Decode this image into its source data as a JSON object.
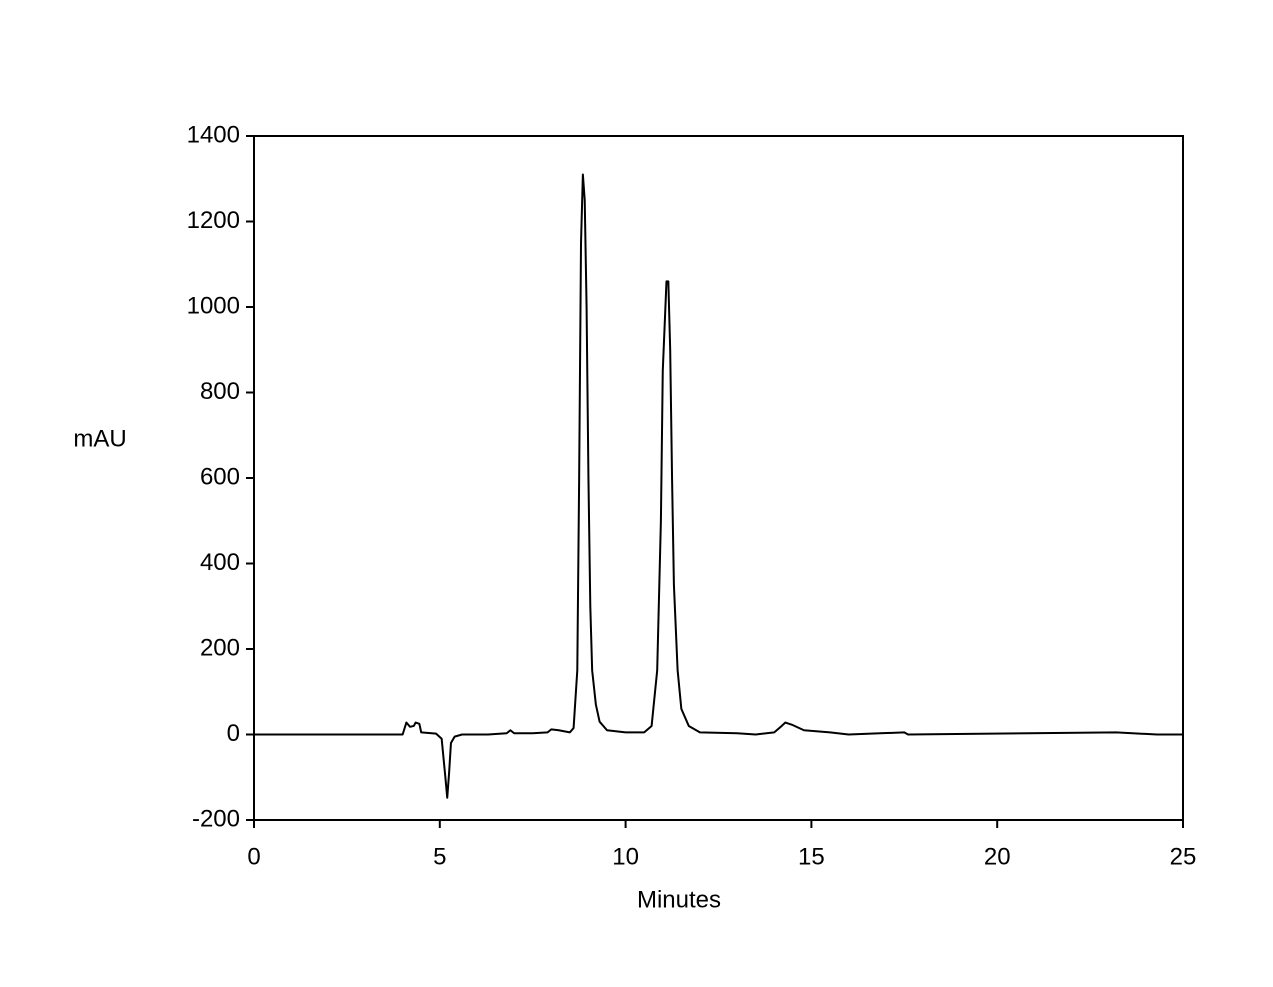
{
  "chart_data": {
    "type": "line",
    "xlabel": "Minutes",
    "ylabel": "mAU",
    "x": [
      0,
      4.0,
      4.1,
      4.2,
      4.3,
      4.35,
      4.45,
      4.5,
      4.9,
      5.05,
      5.15,
      5.2,
      5.25,
      5.3,
      5.4,
      5.6,
      6.3,
      6.8,
      6.9,
      7.0,
      7.5,
      7.9,
      8.0,
      8.2,
      8.5,
      8.6,
      8.7,
      8.75,
      8.8,
      8.85,
      8.9,
      8.95,
      9.0,
      9.05,
      9.1,
      9.2,
      9.3,
      9.5,
      10.0,
      10.5,
      10.7,
      10.85,
      10.95,
      11.0,
      11.1,
      11.15,
      11.2,
      11.25,
      11.3,
      11.4,
      11.5,
      11.7,
      12.0,
      13.0,
      13.5,
      14.0,
      14.2,
      14.3,
      14.5,
      14.8,
      15.5,
      16.0,
      17.5,
      17.6,
      23.2,
      24.3,
      25
    ],
    "series": [
      {
        "color": "#000000",
        "values": [
          0,
          0,
          28,
          18,
          20,
          28,
          25,
          5,
          2,
          -10,
          -100,
          -148,
          -90,
          -20,
          -5,
          0,
          0,
          3,
          10,
          3,
          3,
          5,
          12,
          10,
          5,
          15,
          150,
          600,
          1150,
          1310,
          1250,
          1000,
          600,
          300,
          150,
          70,
          30,
          10,
          5,
          5,
          20,
          150,
          500,
          850,
          1060,
          1060,
          900,
          600,
          350,
          150,
          60,
          20,
          5,
          3,
          0,
          5,
          20,
          28,
          22,
          10,
          5,
          0,
          5,
          0,
          5,
          0,
          0
        ]
      }
    ],
    "xlim": [
      0,
      25
    ],
    "xticks": [
      0,
      5,
      10,
      15,
      20,
      25
    ],
    "ylim": [
      -200,
      1400
    ],
    "yticks": [
      -200,
      0,
      200,
      400,
      600,
      800,
      1000,
      1200,
      1400
    ]
  }
}
